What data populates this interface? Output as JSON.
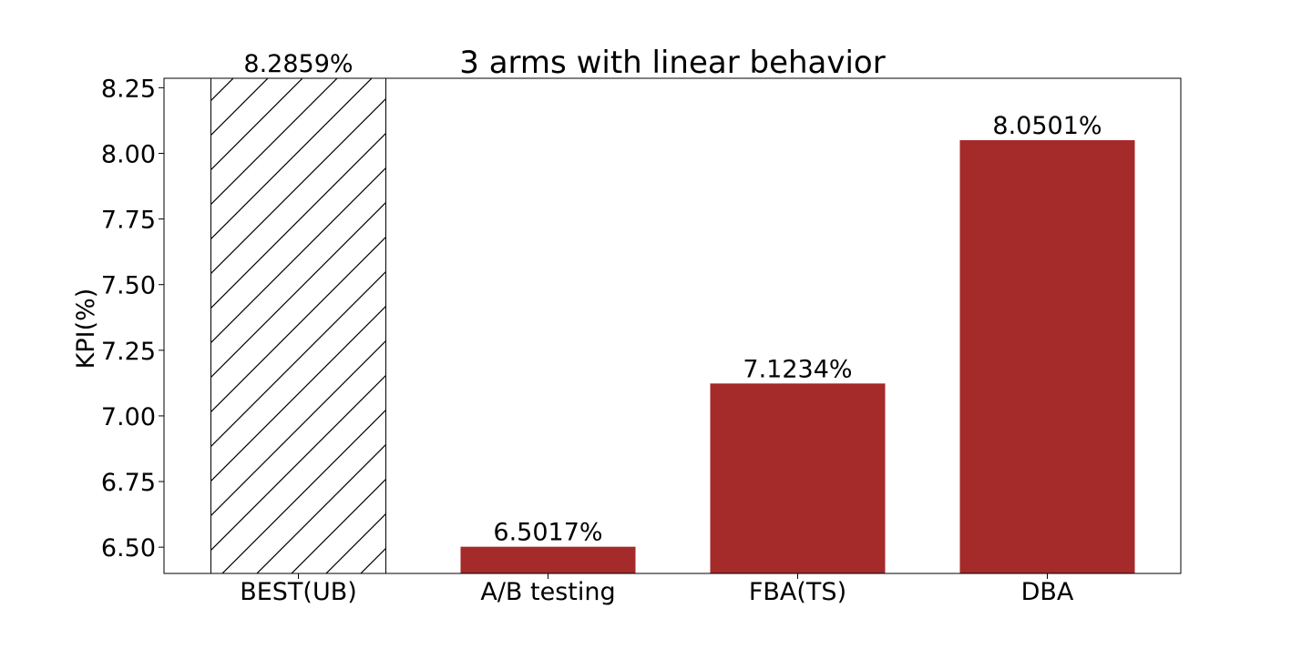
{
  "chart_data": {
    "type": "bar",
    "title": "3 arms with linear behavior",
    "xlabel": "",
    "ylabel": "KPI(%)",
    "categories": [
      "BEST(UB)",
      "A/B testing",
      "FBA(TS)",
      "DBA"
    ],
    "values": [
      8.2859,
      6.5017,
      7.1234,
      8.0501
    ],
    "data_labels": [
      "8.2859%",
      "6.5017%",
      "7.1234%",
      "8.0501%"
    ],
    "bar_styles": [
      "hatched",
      "solid",
      "solid",
      "solid"
    ],
    "ylim": [
      6.4,
      8.2859
    ],
    "yticks": [
      6.5,
      6.75,
      7.0,
      7.25,
      7.5,
      7.75,
      8.0,
      8.25
    ],
    "ytick_labels": [
      "6.50",
      "6.75",
      "7.00",
      "7.25",
      "7.50",
      "7.75",
      "8.00",
      "8.25"
    ],
    "grid": false,
    "legend": "none",
    "colors": {
      "bar": "#a52a2a",
      "hatch_bar_fill": "#ffffff",
      "hatch_line": "#000000",
      "axis": "#000000"
    }
  }
}
